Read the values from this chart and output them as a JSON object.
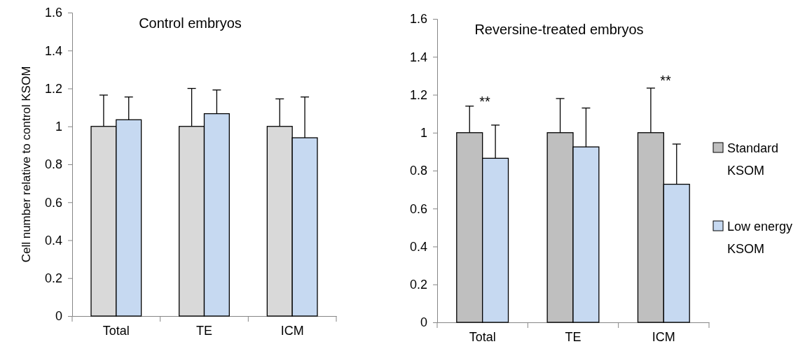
{
  "chart_data": [
    {
      "type": "bar",
      "title": "Control embryos",
      "ylabel": "Cell number relative to control KSOM",
      "categories": [
        "Total",
        "TE",
        "ICM"
      ],
      "ylim": [
        0,
        1.6
      ],
      "yticks": [
        0,
        0.2,
        0.4,
        0.6,
        0.8,
        1,
        1.2,
        1.4,
        1.6
      ],
      "legend": false,
      "series": [
        {
          "color": "#d9d9d9",
          "values": [
            1,
            1,
            1
          ],
          "errors": [
            [
              1,
              1.165
            ],
            [
              1,
              1.2
            ],
            [
              1,
              1.145
            ]
          ]
        },
        {
          "color": "#c6d9f1",
          "values": [
            1.035,
            1.067,
            0.94
          ],
          "errors": [
            [
              1.035,
              1.155
            ],
            [
              1.067,
              1.192
            ],
            [
              0.94,
              1.155
            ]
          ]
        }
      ]
    },
    {
      "type": "bar",
      "title": "Reversine-treated embryos",
      "categories": [
        "Total",
        "TE",
        "ICM"
      ],
      "ylim": [
        0,
        1.6
      ],
      "yticks": [
        0,
        0.2,
        0.4,
        0.6,
        0.8,
        1,
        1.2,
        1.4,
        1.6
      ],
      "legend": "right",
      "annotations": [
        "**",
        "**"
      ],
      "series": [
        {
          "name": "Standard KSOM",
          "color": "#bfbfbf",
          "values": [
            1,
            1,
            1
          ],
          "errors": [
            [
              1,
              1.14
            ],
            [
              1,
              1.18
            ],
            [
              1,
              1.235
            ]
          ]
        },
        {
          "name": "Low energy KSOM",
          "color": "#c6d9f1",
          "values": [
            0.865,
            0.925,
            0.728
          ],
          "errors": [
            [
              0.865,
              1.04
            ],
            [
              0.925,
              1.13
            ],
            [
              0.728,
              0.94
            ]
          ]
        }
      ]
    }
  ]
}
